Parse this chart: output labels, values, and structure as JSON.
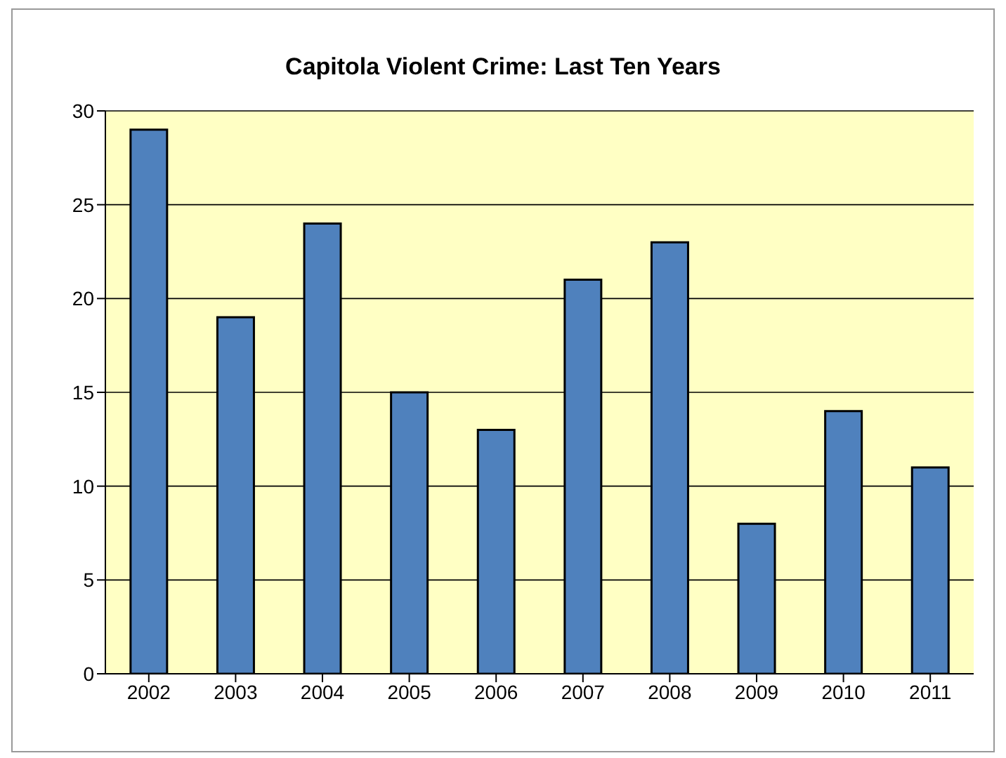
{
  "chart_data": {
    "type": "bar",
    "title": "Capitola Violent Crime: Last Ten Years",
    "categories": [
      "2002",
      "2003",
      "2004",
      "2005",
      "2006",
      "2007",
      "2008",
      "2009",
      "2010",
      "2011"
    ],
    "values": [
      29,
      19,
      24,
      15,
      13,
      21,
      23,
      8,
      14,
      11
    ],
    "color": "#4f81bd",
    "ylim": [
      0,
      30
    ],
    "yticks": [
      0,
      5,
      10,
      15,
      20,
      25,
      30
    ],
    "grid": "y"
  }
}
